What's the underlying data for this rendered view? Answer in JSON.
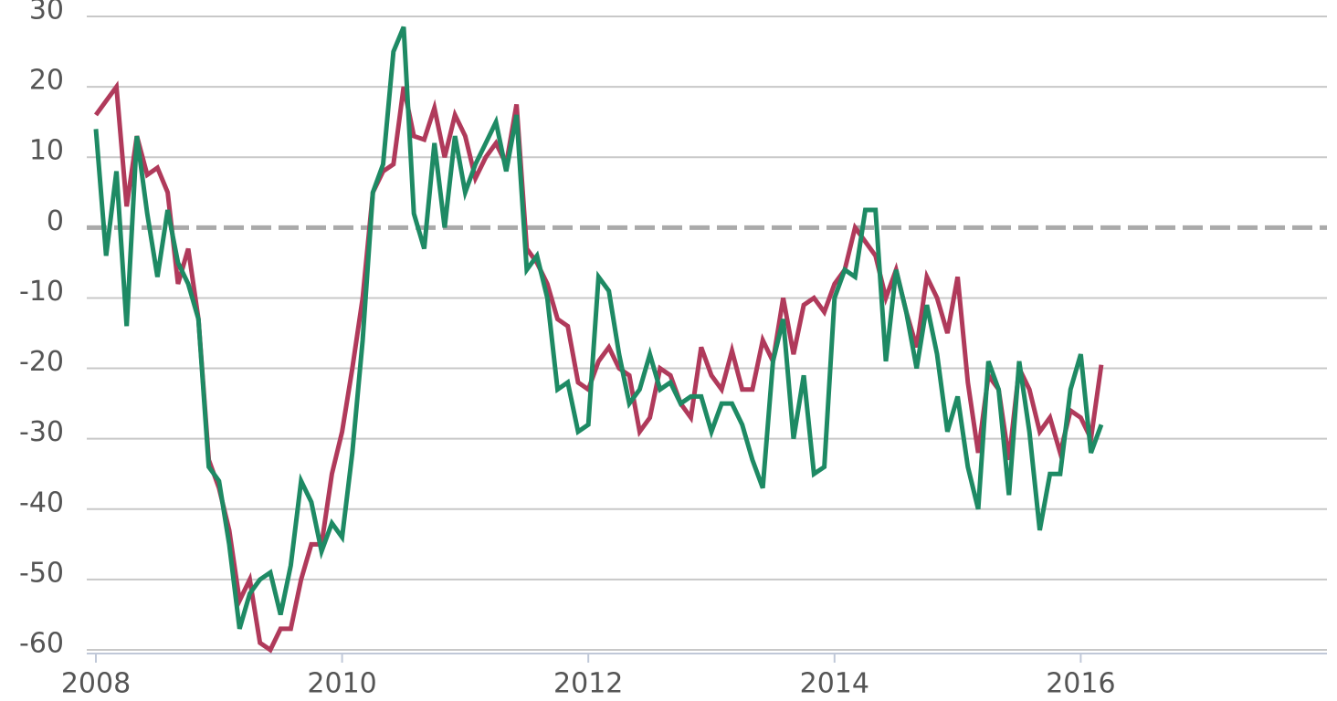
{
  "chart_data": {
    "type": "line",
    "x": [
      2008,
      2008.083,
      2008.167,
      2008.25,
      2008.333,
      2008.417,
      2008.5,
      2008.583,
      2008.667,
      2008.75,
      2008.833,
      2008.917,
      2009,
      2009.083,
      2009.167,
      2009.25,
      2009.333,
      2009.417,
      2009.5,
      2009.583,
      2009.667,
      2009.75,
      2009.833,
      2009.917,
      2010,
      2010.083,
      2010.167,
      2010.25,
      2010.333,
      2010.417,
      2010.5,
      2010.583,
      2010.667,
      2010.75,
      2010.833,
      2010.917,
      2011,
      2011.083,
      2011.167,
      2011.25,
      2011.333,
      2011.417,
      2011.5,
      2011.583,
      2011.667,
      2011.75,
      2011.833,
      2011.917,
      2012,
      2012.083,
      2012.167,
      2012.25,
      2012.333,
      2012.417,
      2012.5,
      2012.583,
      2012.667,
      2012.75,
      2012.833,
      2012.917,
      2013,
      2013.083,
      2013.167,
      2013.25,
      2013.333,
      2013.417,
      2013.5,
      2013.583,
      2013.667,
      2013.75,
      2013.833,
      2013.917,
      2014,
      2014.083,
      2014.167,
      2014.25,
      2014.333,
      2014.417,
      2014.5,
      2014.583,
      2014.667,
      2014.75,
      2014.833,
      2014.917,
      2015,
      2015.083,
      2015.167,
      2015.25,
      2015.333,
      2015.417,
      2015.5,
      2015.583,
      2015.667,
      2015.75,
      2015.833,
      2015.917,
      2016,
      2016.083,
      2016.167
    ],
    "series": [
      {
        "color": "#b03a5b",
        "values": [
          16,
          18,
          20,
          3,
          13,
          7.5,
          8.5,
          5,
          -8,
          -3,
          -13,
          -33,
          -37,
          -43,
          -53,
          -50,
          -59,
          -60,
          -57,
          -57,
          -50,
          -45,
          -45,
          -35,
          -29,
          -20,
          -10,
          5,
          8,
          9,
          20,
          13,
          12.5,
          17,
          10,
          16,
          13,
          7,
          10,
          12,
          9,
          17.5,
          -3,
          -5,
          -8,
          -13,
          -14,
          -22,
          -23,
          -19,
          -17,
          -20,
          -21,
          -29,
          -27,
          -20,
          -21,
          -25,
          -27,
          -17,
          -21,
          -23,
          -17.5,
          -23,
          -23,
          -16,
          -19,
          -10,
          -18,
          -11,
          -10,
          -12,
          -8,
          -6,
          0,
          -2,
          -4,
          -10,
          -6,
          -12,
          -17,
          -7,
          -10,
          -15,
          -7,
          -22,
          -32,
          -21,
          -23,
          -33,
          -20,
          -23,
          -29,
          -27,
          -32,
          -26,
          -27,
          -30,
          -19.5
        ]
      },
      {
        "color": "#1e8a64",
        "values": [
          14,
          -4,
          8,
          -14,
          13,
          2,
          -7,
          2.5,
          -5,
          -8,
          -13,
          -34,
          -36,
          -45,
          -57,
          -52,
          -50,
          -49,
          -55,
          -48,
          -36,
          -39,
          -46,
          -42,
          -44,
          -32,
          -16,
          5,
          9,
          25,
          28.5,
          2,
          -3,
          12,
          0,
          13,
          5,
          9,
          12,
          15,
          8,
          16,
          -6,
          -4,
          -10,
          -23,
          -22,
          -29,
          -28,
          -7,
          -9,
          -18,
          -25,
          -23,
          -18,
          -23,
          -22,
          -25,
          -24,
          -24,
          -29,
          -25,
          -25,
          -28,
          -33,
          -37,
          -19,
          -13,
          -30,
          -21,
          -35,
          -34,
          -10,
          -6,
          -7,
          2.5,
          2.5,
          -19,
          -6,
          -12,
          -20,
          -11,
          -18,
          -29,
          -24,
          -34,
          -40,
          -19,
          -23,
          -38,
          -19,
          -29,
          -43,
          -35,
          -35,
          -23,
          -18,
          -32,
          -28
        ]
      }
    ],
    "xlim": [
      2008,
      2018
    ],
    "xticks": [
      2008,
      2010,
      2012,
      2014,
      2016
    ],
    "ylim": [
      -60,
      30
    ],
    "yticks": [
      -60,
      -50,
      -40,
      -30,
      -20,
      -10,
      0,
      10,
      20,
      30
    ],
    "grid": true
  }
}
